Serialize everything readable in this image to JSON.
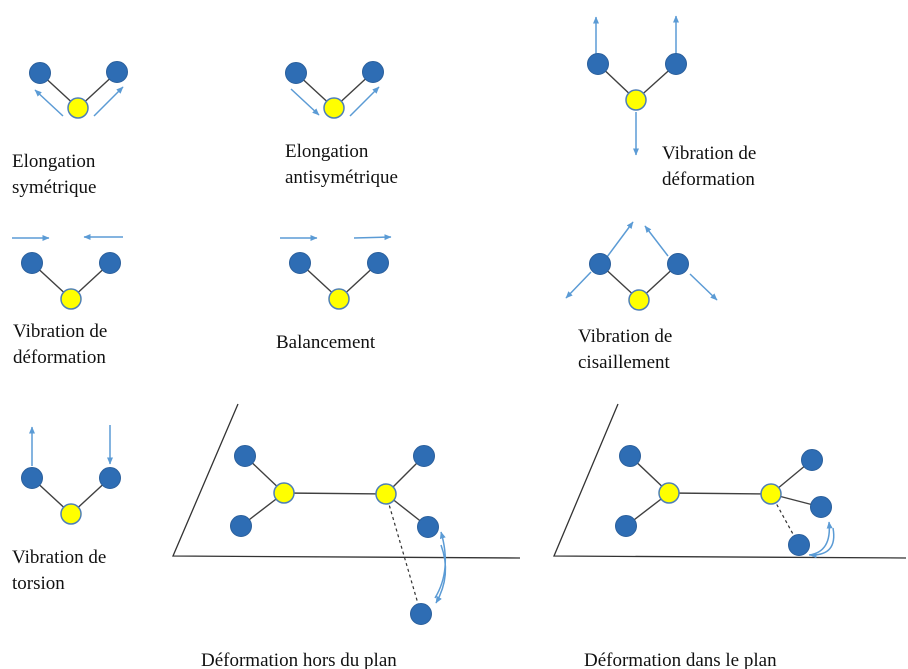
{
  "colors": {
    "central_atom": "#ffff00",
    "outer_atom": "#2e6db4",
    "arrow": "#5b9bd5",
    "bond": "#404040"
  },
  "labels": {
    "sym_stretch": [
      "Elongation",
      "symétrique"
    ],
    "antisym_stretch": [
      "Elongation",
      "antisymétrique"
    ],
    "bending_top": [
      "Vibration de",
      "déformation"
    ],
    "bending_mid": [
      "Vibration de",
      "déformation"
    ],
    "rocking": [
      "Balancement"
    ],
    "scissoring": [
      "Vibration de",
      "cisaillement"
    ],
    "twisting": [
      "Vibration de",
      "torsion"
    ],
    "out_of_plane": [
      "Déformation hors du plan"
    ],
    "in_plane": [
      "Déformation dans le plan"
    ]
  }
}
